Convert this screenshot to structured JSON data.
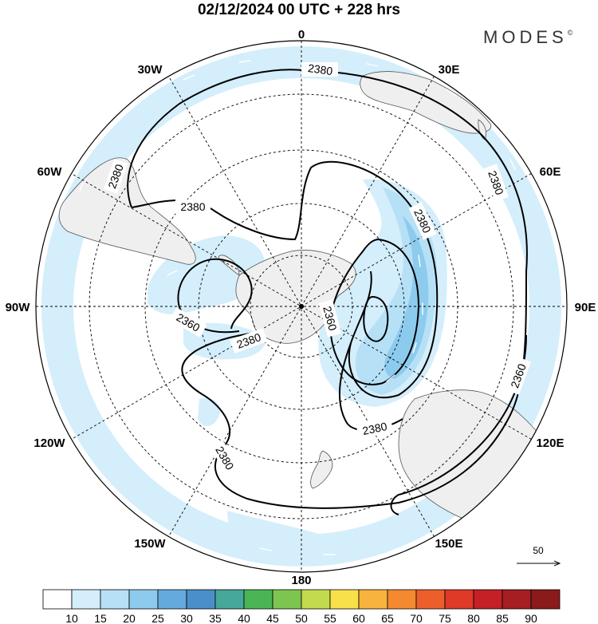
{
  "title": "02/12/2024  00 UTC  + 228 hrs",
  "brand": "MODES",
  "brand_mark": "©",
  "longitude_labels": [
    {
      "text": "0",
      "lon": 0
    },
    {
      "text": "30E",
      "lon": 30
    },
    {
      "text": "60E",
      "lon": 60
    },
    {
      "text": "90E",
      "lon": 90
    },
    {
      "text": "120E",
      "lon": 120
    },
    {
      "text": "150E",
      "lon": 150
    },
    {
      "text": "180",
      "lon": 180
    },
    {
      "text": "150W",
      "lon": -150
    },
    {
      "text": "120W",
      "lon": -120
    },
    {
      "text": "90W",
      "lon": -90
    },
    {
      "text": "60W",
      "lon": -60
    },
    {
      "text": "30W",
      "lon": -30
    }
  ],
  "contour_labels": [
    "2380",
    "2380",
    "2380",
    "2380",
    "2380",
    "2360",
    "2360",
    "2380",
    "2380",
    "2380",
    "2360"
  ],
  "reference_vector": "50",
  "colorbar": {
    "ticks": [
      "10",
      "15",
      "20",
      "25",
      "30",
      "35",
      "40",
      "45",
      "50",
      "55",
      "60",
      "65",
      "70",
      "75",
      "80",
      "85",
      "90"
    ],
    "colors": [
      "#ffffff",
      "#d4eefb",
      "#b6e0f6",
      "#8ccbee",
      "#65aadc",
      "#4a8fc9",
      "#45a89a",
      "#4bb556",
      "#7dc550",
      "#c3da4f",
      "#f8e04a",
      "#f8b33e",
      "#f4892f",
      "#ec5e2a",
      "#df3928",
      "#c42025",
      "#a51e22",
      "#8b1a1a"
    ]
  },
  "colors": {
    "land": "#efefef",
    "coast": "#555555",
    "shade_light": "#d4eefb",
    "shade_mid": "#b6e0f6",
    "shade_dark": "#8ccbee",
    "shade_darkest": "#65aadc"
  }
}
